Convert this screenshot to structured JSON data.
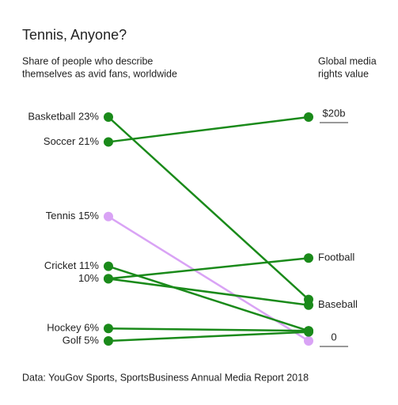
{
  "chart_data": {
    "type": "slope",
    "title": "Tennis, Anyone?",
    "left_axis_label": [
      "Share of people who describe",
      "themselves as avid fans, worldwide"
    ],
    "right_axis_label": [
      "Global media",
      "rights value"
    ],
    "source": "Data: YouGov Sports, SportsBusiness Annual Media Report 2018",
    "ylim": [
      5,
      23
    ],
    "y2lim": [
      0,
      20
    ],
    "y2ticks": [
      {
        "value": 20,
        "label": "$20b"
      },
      0
    ],
    "series": [
      {
        "name": "Soccer 21%",
        "color": "#1a8a1a",
        "values": [
          21,
          20
        ],
        "end_label": null
      },
      {
        "name": "Basketball 23%",
        "color": "#1a8a1a",
        "values": [
          23,
          3.7
        ],
        "end_label": null
      },
      {
        "name": "Tennis 15%",
        "color": "#d9a3f5",
        "values": [
          15,
          0
        ],
        "end_label": null
      },
      {
        "name": "Cricket 11%",
        "color": "#1a8a1a",
        "values": [
          11,
          0.9
        ],
        "end_label": null
      },
      {
        "name": "10%",
        "color": "#1a8a1a",
        "values": [
          10,
          7.4
        ],
        "end_label": "Football"
      },
      {
        "name": null,
        "color": "#1a8a1a",
        "values": [
          10,
          3.2
        ],
        "end_label": "Baseball"
      },
      {
        "name": "Hockey 6%",
        "color": "#1a8a1a",
        "values": [
          6,
          0.9
        ],
        "end_label": null
      },
      {
        "name": "Golf 5%",
        "color": "#1a8a1a",
        "values": [
          5,
          0.8
        ],
        "end_label": null
      }
    ]
  }
}
